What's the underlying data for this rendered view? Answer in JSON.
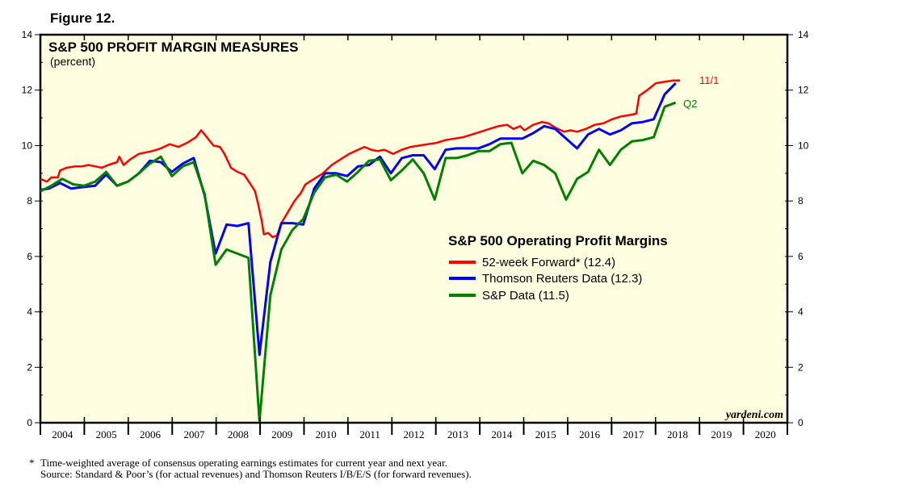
{
  "figure_label": "Figure 12.",
  "chart_data": {
    "type": "line",
    "title": "S&P 500 PROFIT MARGIN MEASURES",
    "subtitle": "(percent)",
    "ylim": [
      0,
      14
    ],
    "y_ticks": [
      0,
      2,
      4,
      6,
      8,
      10,
      12,
      14
    ],
    "xlim": [
      2003.95,
      2021.0
    ],
    "x_tick_labels": [
      "2004",
      "2005",
      "2006",
      "2007",
      "2008",
      "2009",
      "2010",
      "2011",
      "2012",
      "2013",
      "2014",
      "2015",
      "2016",
      "2017",
      "2018",
      "2019",
      "2020"
    ],
    "grid": false,
    "background": "#fffee0",
    "legend": {
      "title": "S&P 500 Operating Profit Margins",
      "placement": "center-right"
    },
    "series": [
      {
        "name": "52-week Forward* (12.4)",
        "color": "#ff0000",
        "end_label": "11/1",
        "points": [
          [
            2003.95,
            8.8
          ],
          [
            2004.1,
            8.7
          ],
          [
            2004.2,
            8.85
          ],
          [
            2004.35,
            8.85
          ],
          [
            2004.4,
            9.1
          ],
          [
            2004.55,
            9.2
          ],
          [
            2004.75,
            9.25
          ],
          [
            2004.9,
            9.25
          ],
          [
            2005.05,
            9.3
          ],
          [
            2005.2,
            9.25
          ],
          [
            2005.35,
            9.2
          ],
          [
            2005.5,
            9.3
          ],
          [
            2005.7,
            9.4
          ],
          [
            2005.75,
            9.6
          ],
          [
            2005.85,
            9.3
          ],
          [
            2006.0,
            9.5
          ],
          [
            2006.2,
            9.7
          ],
          [
            2006.5,
            9.8
          ],
          [
            2006.7,
            9.9
          ],
          [
            2006.9,
            10.05
          ],
          [
            2007.1,
            9.95
          ],
          [
            2007.3,
            10.1
          ],
          [
            2007.5,
            10.3
          ],
          [
            2007.62,
            10.55
          ],
          [
            2007.75,
            10.3
          ],
          [
            2007.9,
            10.0
          ],
          [
            2008.05,
            9.95
          ],
          [
            2008.15,
            9.7
          ],
          [
            2008.3,
            9.2
          ],
          [
            2008.45,
            9.05
          ],
          [
            2008.6,
            8.95
          ],
          [
            2008.75,
            8.6
          ],
          [
            2008.85,
            8.35
          ],
          [
            2008.92,
            7.9
          ],
          [
            2009.0,
            7.3
          ],
          [
            2009.05,
            6.8
          ],
          [
            2009.15,
            6.85
          ],
          [
            2009.25,
            6.7
          ],
          [
            2009.35,
            6.75
          ],
          [
            2009.45,
            7.2
          ],
          [
            2009.6,
            7.6
          ],
          [
            2009.75,
            8.0
          ],
          [
            2009.9,
            8.3
          ],
          [
            2010.0,
            8.6
          ],
          [
            2010.2,
            8.8
          ],
          [
            2010.4,
            9.0
          ],
          [
            2010.6,
            9.3
          ],
          [
            2010.8,
            9.5
          ],
          [
            2011.0,
            9.7
          ],
          [
            2011.2,
            9.85
          ],
          [
            2011.35,
            9.95
          ],
          [
            2011.5,
            9.85
          ],
          [
            2011.65,
            9.8
          ],
          [
            2011.8,
            9.85
          ],
          [
            2012.0,
            9.7
          ],
          [
            2012.2,
            9.85
          ],
          [
            2012.4,
            9.95
          ],
          [
            2012.6,
            10.0
          ],
          [
            2012.8,
            10.05
          ],
          [
            2013.0,
            10.1
          ],
          [
            2013.2,
            10.2
          ],
          [
            2013.4,
            10.25
          ],
          [
            2013.6,
            10.3
          ],
          [
            2013.8,
            10.4
          ],
          [
            2014.0,
            10.5
          ],
          [
            2014.2,
            10.6
          ],
          [
            2014.4,
            10.7
          ],
          [
            2014.6,
            10.75
          ],
          [
            2014.75,
            10.6
          ],
          [
            2014.9,
            10.7
          ],
          [
            2015.0,
            10.55
          ],
          [
            2015.2,
            10.75
          ],
          [
            2015.4,
            10.85
          ],
          [
            2015.55,
            10.8
          ],
          [
            2015.7,
            10.65
          ],
          [
            2015.9,
            10.5
          ],
          [
            2016.05,
            10.55
          ],
          [
            2016.2,
            10.5
          ],
          [
            2016.4,
            10.6
          ],
          [
            2016.6,
            10.75
          ],
          [
            2016.8,
            10.8
          ],
          [
            2017.0,
            10.95
          ],
          [
            2017.2,
            11.05
          ],
          [
            2017.4,
            11.1
          ],
          [
            2017.55,
            11.15
          ],
          [
            2017.62,
            11.8
          ],
          [
            2017.8,
            12.0
          ],
          [
            2018.0,
            12.25
          ],
          [
            2018.2,
            12.3
          ],
          [
            2018.4,
            12.35
          ],
          [
            2018.55,
            12.35
          ]
        ]
      },
      {
        "name": "Thomson Reuters Data (12.3)",
        "color": "#0000ff",
        "points": [
          [
            2003.95,
            8.4
          ],
          [
            2004.15,
            8.45
          ],
          [
            2004.4,
            8.65
          ],
          [
            2004.65,
            8.45
          ],
          [
            2004.9,
            8.5
          ],
          [
            2005.2,
            8.55
          ],
          [
            2005.45,
            8.95
          ],
          [
            2005.7,
            8.55
          ],
          [
            2005.95,
            8.7
          ],
          [
            2006.2,
            9.0
          ],
          [
            2006.45,
            9.45
          ],
          [
            2006.7,
            9.4
          ],
          [
            2006.95,
            9.05
          ],
          [
            2007.2,
            9.35
          ],
          [
            2007.45,
            9.55
          ],
          [
            2007.7,
            8.2
          ],
          [
            2007.95,
            6.1
          ],
          [
            2008.2,
            7.15
          ],
          [
            2008.45,
            7.1
          ],
          [
            2008.7,
            7.2
          ],
          [
            2008.95,
            2.45
          ],
          [
            2009.2,
            5.8
          ],
          [
            2009.45,
            7.2
          ],
          [
            2009.7,
            7.2
          ],
          [
            2009.95,
            7.15
          ],
          [
            2010.2,
            8.45
          ],
          [
            2010.45,
            9.0
          ],
          [
            2010.7,
            9.0
          ],
          [
            2010.95,
            8.9
          ],
          [
            2011.2,
            9.25
          ],
          [
            2011.45,
            9.3
          ],
          [
            2011.7,
            9.6
          ],
          [
            2011.95,
            9.0
          ],
          [
            2012.2,
            9.55
          ],
          [
            2012.45,
            9.65
          ],
          [
            2012.7,
            9.65
          ],
          [
            2012.95,
            9.15
          ],
          [
            2013.2,
            9.85
          ],
          [
            2013.45,
            9.9
          ],
          [
            2013.7,
            9.9
          ],
          [
            2013.95,
            9.9
          ],
          [
            2014.2,
            10.05
          ],
          [
            2014.45,
            10.25
          ],
          [
            2014.7,
            10.25
          ],
          [
            2014.95,
            10.25
          ],
          [
            2015.2,
            10.45
          ],
          [
            2015.45,
            10.7
          ],
          [
            2015.7,
            10.6
          ],
          [
            2015.95,
            10.25
          ],
          [
            2016.2,
            9.9
          ],
          [
            2016.45,
            10.4
          ],
          [
            2016.7,
            10.6
          ],
          [
            2016.95,
            10.4
          ],
          [
            2017.2,
            10.55
          ],
          [
            2017.45,
            10.8
          ],
          [
            2017.7,
            10.85
          ],
          [
            2017.95,
            10.95
          ],
          [
            2018.2,
            11.85
          ],
          [
            2018.45,
            12.25
          ]
        ]
      },
      {
        "name": "S&P Data (11.5)",
        "color": "#008000",
        "end_label": "Q2",
        "points": [
          [
            2003.95,
            8.35
          ],
          [
            2004.2,
            8.55
          ],
          [
            2004.45,
            8.8
          ],
          [
            2004.7,
            8.6
          ],
          [
            2004.95,
            8.55
          ],
          [
            2005.2,
            8.7
          ],
          [
            2005.45,
            9.05
          ],
          [
            2005.7,
            8.55
          ],
          [
            2005.95,
            8.7
          ],
          [
            2006.2,
            9.0
          ],
          [
            2006.45,
            9.35
          ],
          [
            2006.7,
            9.6
          ],
          [
            2006.95,
            8.9
          ],
          [
            2007.2,
            9.25
          ],
          [
            2007.45,
            9.4
          ],
          [
            2007.7,
            8.25
          ],
          [
            2007.95,
            5.7
          ],
          [
            2008.2,
            6.25
          ],
          [
            2008.45,
            6.1
          ],
          [
            2008.7,
            5.95
          ],
          [
            2008.95,
            0.05
          ],
          [
            2009.2,
            4.6
          ],
          [
            2009.45,
            6.25
          ],
          [
            2009.7,
            6.95
          ],
          [
            2009.95,
            7.35
          ],
          [
            2010.2,
            8.3
          ],
          [
            2010.45,
            8.85
          ],
          [
            2010.7,
            8.95
          ],
          [
            2010.95,
            8.7
          ],
          [
            2011.2,
            9.05
          ],
          [
            2011.45,
            9.45
          ],
          [
            2011.7,
            9.5
          ],
          [
            2011.95,
            8.75
          ],
          [
            2012.2,
            9.1
          ],
          [
            2012.45,
            9.5
          ],
          [
            2012.7,
            9.0
          ],
          [
            2012.95,
            8.05
          ],
          [
            2013.2,
            9.55
          ],
          [
            2013.45,
            9.55
          ],
          [
            2013.7,
            9.65
          ],
          [
            2013.95,
            9.8
          ],
          [
            2014.2,
            9.8
          ],
          [
            2014.45,
            10.05
          ],
          [
            2014.7,
            10.1
          ],
          [
            2014.95,
            9.0
          ],
          [
            2015.2,
            9.45
          ],
          [
            2015.45,
            9.3
          ],
          [
            2015.7,
            9.0
          ],
          [
            2015.95,
            8.05
          ],
          [
            2016.2,
            8.8
          ],
          [
            2016.45,
            9.05
          ],
          [
            2016.7,
            9.85
          ],
          [
            2016.95,
            9.3
          ],
          [
            2017.2,
            9.85
          ],
          [
            2017.45,
            10.15
          ],
          [
            2017.7,
            10.2
          ],
          [
            2017.95,
            10.3
          ],
          [
            2018.2,
            11.4
          ],
          [
            2018.45,
            11.55
          ]
        ]
      }
    ]
  },
  "watermark": "yardeni.com",
  "footnotes": {
    "asterisk": "*",
    "line1": "Time-weighted average of consensus operating earnings estimates for current year and next year.",
    "line2": "Source: Standard & Poor’s (for actual revenues) and Thomson Reuters I/B/E/S (for forward revenues)."
  }
}
